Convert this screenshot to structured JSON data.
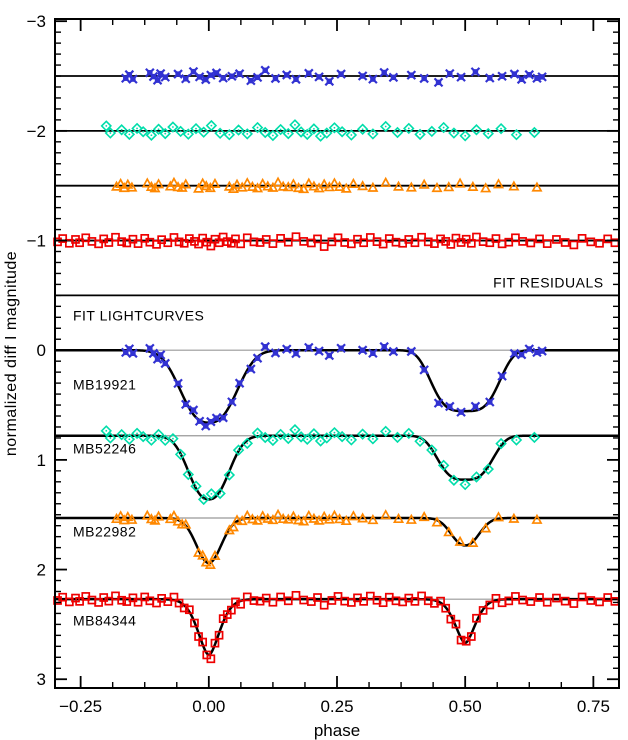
{
  "chart_data": {
    "type": "scatter",
    "title": "",
    "xlabel": "phase",
    "ylabel": "normalized diff I magnitude",
    "xlim": [
      -0.3,
      0.8
    ],
    "ylim_top_to_bottom": [
      -3.02,
      3.08
    ],
    "y_increases_downward": true,
    "grid": false,
    "legend": "none",
    "x_major_ticks": [
      {
        "v": -0.25,
        "label": "−0.25"
      },
      {
        "v": 0.0,
        "label": "0.00"
      },
      {
        "v": 0.25,
        "label": "0.25"
      },
      {
        "v": 0.5,
        "label": "0.50"
      },
      {
        "v": 0.75,
        "label": "0.75"
      }
    ],
    "x_minor_step": 0.0625,
    "y_major_ticks": [
      {
        "v": -3,
        "label": "−3"
      },
      {
        "v": -2,
        "label": "−2"
      },
      {
        "v": -1,
        "label": "−1"
      },
      {
        "v": 0,
        "label": "0"
      },
      {
        "v": 1,
        "label": "1"
      },
      {
        "v": 2,
        "label": "2"
      },
      {
        "v": 3,
        "label": "3"
      }
    ],
    "y_minor_step": 0.1,
    "section_divider_y": -0.5,
    "annotations": [
      {
        "id": "fit-residuals",
        "text": "FIT RESIDUALS",
        "x": 0.77,
        "y": -0.57,
        "align": "end"
      },
      {
        "id": "fit-lightcurves",
        "text": "FIT LIGHTCURVES",
        "x": -0.265,
        "y": -0.27,
        "align": "start"
      }
    ],
    "baseline_color": "#999999",
    "fit_color": "#000000",
    "series": [
      {
        "id": "MB19921",
        "label": "MB19921",
        "label_pos": [
          -0.265,
          0.36
        ],
        "color": "#3232d2",
        "marker": "star",
        "residual_level": -2.5,
        "base": 0.0,
        "primary": {
          "center": 0.0,
          "depth": 0.66,
          "width": 0.068,
          "shape": 2.6
        },
        "secondary": {
          "center": 0.5,
          "depth": 0.555,
          "width": 0.075,
          "shape": 3.6
        },
        "phases": [
          -0.162,
          -0.155,
          -0.148,
          -0.115,
          -0.108,
          -0.1,
          -0.094,
          -0.085,
          -0.06,
          -0.045,
          -0.03,
          -0.018,
          -0.006,
          0.004,
          0.015,
          0.028,
          0.045,
          0.06,
          0.082,
          0.095,
          0.11,
          0.13,
          0.152,
          0.17,
          0.195,
          0.215,
          0.235,
          0.258,
          0.3,
          0.32,
          0.342,
          0.36,
          0.395,
          0.42,
          0.448,
          0.47,
          0.492,
          0.52,
          0.548,
          0.572,
          0.596,
          0.61,
          0.625,
          0.64,
          0.65
        ],
        "residuals": [
          0.02,
          -0.012,
          0.028,
          -0.03,
          0.005,
          0.038,
          -0.022,
          0.01,
          -0.018,
          0.025,
          -0.04,
          0.008,
          0.032,
          -0.008,
          -0.028,
          0.018,
          0.002,
          -0.02,
          0.042,
          0.012,
          -0.052,
          0.022,
          -0.01,
          0.03,
          -0.025,
          0.008,
          0.048,
          -0.018,
          0.0,
          0.028,
          -0.032,
          0.012,
          -0.008,
          0.022,
          0.058,
          -0.022,
          0.01,
          -0.038,
          0.018,
          0.002,
          -0.018,
          0.03,
          -0.012,
          0.02,
          0.008
        ]
      },
      {
        "id": "MB52246",
        "label": "MB52246",
        "label_pos": [
          -0.265,
          0.94
        ],
        "color": "#00ddaa",
        "marker": "diamond",
        "residual_level": -2.0,
        "base": 0.78,
        "primary": {
          "center": 0.0,
          "depth": 0.58,
          "width": 0.05,
          "shape": 2.4
        },
        "secondary": {
          "center": 0.5,
          "depth": 0.4,
          "width": 0.062,
          "shape": 3.2
        },
        "phases": [
          -0.2,
          -0.192,
          -0.17,
          -0.155,
          -0.14,
          -0.128,
          -0.112,
          -0.098,
          -0.085,
          -0.07,
          -0.055,
          -0.04,
          -0.025,
          -0.01,
          0.005,
          0.022,
          0.04,
          0.058,
          0.075,
          0.095,
          0.11,
          0.125,
          0.14,
          0.155,
          0.168,
          0.18,
          0.192,
          0.205,
          0.218,
          0.23,
          0.245,
          0.26,
          0.278,
          0.3,
          0.32,
          0.345,
          0.368,
          0.39,
          0.412,
          0.435,
          0.458,
          0.478,
          0.5,
          0.522,
          0.545,
          0.57,
          0.6,
          0.635
        ],
        "residuals": [
          -0.045,
          0.02,
          -0.01,
          0.032,
          -0.022,
          0.008,
          0.04,
          -0.015,
          0.025,
          -0.035,
          0.005,
          0.03,
          -0.02,
          0.012,
          -0.048,
          0.022,
          0.035,
          -0.008,
          0.028,
          -0.03,
          0.015,
          0.042,
          -0.012,
          0.025,
          -0.055,
          0.01,
          0.032,
          -0.018,
          0.048,
          0.02,
          -0.028,
          0.008,
          0.038,
          -0.015,
          0.028,
          -0.04,
          0.015,
          -0.022,
          0.032,
          0.005,
          -0.03,
          0.02,
          0.045,
          -0.01,
          0.025,
          -0.02,
          0.035,
          0.015
        ]
      },
      {
        "id": "MB22982",
        "label": "MB22982",
        "label_pos": [
          -0.265,
          1.7
        ],
        "color": "#ff8800",
        "marker": "triangle",
        "residual_level": -1.5,
        "base": 1.53,
        "primary": {
          "center": 0.0,
          "depth": 0.41,
          "width": 0.034,
          "shape": 2.0
        },
        "secondary": {
          "center": 0.5,
          "depth": 0.25,
          "width": 0.036,
          "shape": 2.2
        },
        "phases": [
          -0.18,
          -0.172,
          -0.165,
          -0.158,
          -0.15,
          -0.12,
          -0.112,
          -0.105,
          -0.098,
          -0.075,
          -0.068,
          -0.06,
          -0.052,
          -0.045,
          -0.02,
          -0.012,
          -0.005,
          0.003,
          0.012,
          0.04,
          0.048,
          0.055,
          0.065,
          0.075,
          0.085,
          0.095,
          0.105,
          0.115,
          0.125,
          0.135,
          0.145,
          0.155,
          0.165,
          0.175,
          0.185,
          0.195,
          0.205,
          0.215,
          0.225,
          0.235,
          0.245,
          0.255,
          0.268,
          0.282,
          0.3,
          0.32,
          0.345,
          0.37,
          0.395,
          0.42,
          0.445,
          0.468,
          0.49,
          0.515,
          0.54,
          0.565,
          0.595,
          0.64
        ],
        "residuals": [
          0.01,
          -0.015,
          0.022,
          -0.008,
          0.018,
          -0.02,
          0.012,
          0.025,
          -0.012,
          0.008,
          -0.025,
          0.015,
          0.02,
          -0.01,
          0.028,
          -0.018,
          0.005,
          0.022,
          -0.015,
          0.01,
          0.03,
          -0.008,
          0.018,
          -0.022,
          0.012,
          0.025,
          -0.015,
          0.008,
          0.02,
          -0.028,
          0.01,
          0.015,
          -0.012,
          0.022,
          0.032,
          -0.018,
          0.008,
          0.025,
          -0.01,
          0.015,
          -0.02,
          0.012,
          0.028,
          -0.015,
          0.005,
          0.02,
          -0.025,
          0.01,
          0.018,
          -0.008,
          0.022,
          0.015,
          -0.018,
          0.012,
          0.025,
          -0.012,
          0.008,
          0.018
        ]
      },
      {
        "id": "MB84344",
        "label": "MB84344",
        "label_pos": [
          -0.265,
          2.51
        ],
        "color": "#ee0000",
        "marker": "square",
        "residual_level": -1.0,
        "base": 2.27,
        "primary": {
          "center": 0.0,
          "depth": 0.51,
          "width": 0.03,
          "shape": 1.7
        },
        "secondary": {
          "center": 0.5,
          "depth": 0.4,
          "width": 0.028,
          "shape": 1.7
        },
        "phases": [
          -0.295,
          -0.285,
          -0.272,
          -0.26,
          -0.252,
          -0.24,
          -0.228,
          -0.215,
          -0.205,
          -0.195,
          -0.182,
          -0.17,
          -0.16,
          -0.148,
          -0.138,
          -0.125,
          -0.115,
          -0.102,
          -0.092,
          -0.08,
          -0.068,
          -0.058,
          -0.048,
          -0.038,
          -0.028,
          -0.02,
          -0.012,
          -0.004,
          0.004,
          0.012,
          0.02,
          0.028,
          0.036,
          0.044,
          0.052,
          0.062,
          0.075,
          0.088,
          0.1,
          0.112,
          0.125,
          0.14,
          0.155,
          0.17,
          0.185,
          0.2,
          0.212,
          0.225,
          0.24,
          0.252,
          0.265,
          0.278,
          0.29,
          0.302,
          0.315,
          0.328,
          0.34,
          0.352,
          0.365,
          0.378,
          0.39,
          0.402,
          0.415,
          0.428,
          0.44,
          0.452,
          0.462,
          0.472,
          0.482,
          0.492,
          0.502,
          0.512,
          0.522,
          0.535,
          0.548,
          0.56,
          0.572,
          0.585,
          0.598,
          0.612,
          0.628,
          0.645,
          0.66,
          0.678,
          0.695,
          0.712,
          0.728,
          0.745,
          0.762,
          0.778,
          0.792
        ],
        "residuals": [
          0.012,
          -0.018,
          0.025,
          -0.01,
          0.02,
          -0.025,
          0.008,
          0.03,
          -0.015,
          0.018,
          -0.03,
          0.01,
          0.022,
          -0.012,
          0.028,
          -0.02,
          0.015,
          0.035,
          -0.008,
          0.02,
          -0.028,
          0.012,
          0.025,
          -0.018,
          0.008,
          0.032,
          -0.022,
          0.015,
          0.05,
          -0.012,
          0.02,
          -0.032,
          0.01,
          0.025,
          -0.015,
          0.03,
          -0.025,
          0.012,
          0.018,
          -0.01,
          0.028,
          -0.02,
          0.015,
          -0.035,
          0.008,
          0.022,
          -0.015,
          0.055,
          0.012,
          -0.025,
          0.018,
          0.03,
          -0.012,
          0.02,
          -0.028,
          0.01,
          0.032,
          -0.018,
          0.015,
          0.025,
          -0.01,
          0.02,
          -0.03,
          0.012,
          0.028,
          -0.015,
          0.008,
          0.035,
          -0.022,
          0.018,
          -0.012,
          0.025,
          -0.032,
          0.01,
          0.02,
          -0.018,
          0.03,
          0.015,
          -0.025,
          0.008,
          0.022,
          -0.015,
          0.028,
          -0.01,
          0.018,
          0.04,
          -0.02,
          0.012,
          0.025,
          -0.015,
          0.02
        ]
      }
    ]
  }
}
